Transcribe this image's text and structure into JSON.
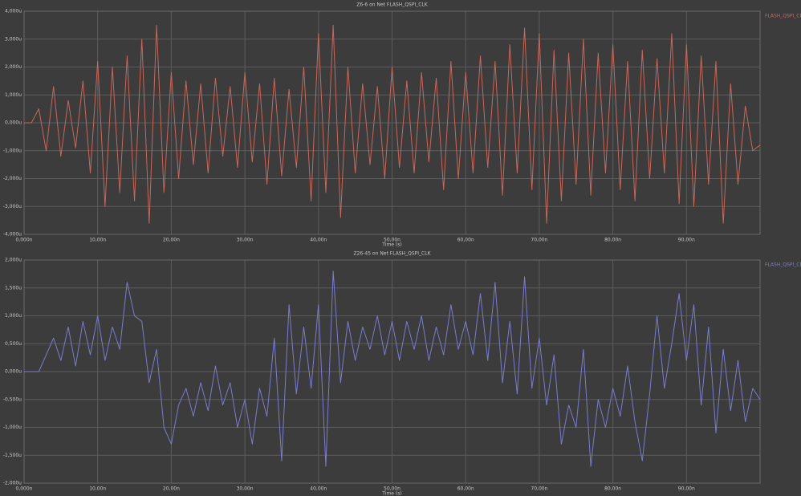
{
  "chart_data": [
    {
      "type": "line",
      "title": "Z6-6 on Net FLASH_QSPI_CLK",
      "x_label": "Time (s)",
      "x": [
        0,
        1,
        2,
        3,
        4,
        5,
        6,
        7,
        8,
        9,
        10,
        11,
        12,
        13,
        14,
        15,
        16,
        17,
        18,
        19,
        20,
        21,
        22,
        23,
        24,
        25,
        26,
        27,
        28,
        29,
        30,
        31,
        32,
        33,
        34,
        35,
        36,
        37,
        38,
        39,
        40,
        41,
        42,
        43,
        44,
        45,
        46,
        47,
        48,
        49,
        50,
        51,
        52,
        53,
        54,
        55,
        56,
        57,
        58,
        59,
        60,
        61,
        62,
        63,
        64,
        65,
        66,
        67,
        68,
        69,
        70,
        71,
        72,
        73,
        74,
        75,
        76,
        77,
        78,
        79,
        80,
        81,
        82,
        83,
        84,
        85,
        86,
        87,
        88,
        89,
        90,
        91,
        92,
        93,
        94,
        95,
        96,
        97,
        98,
        99,
        100
      ],
      "series": [
        {
          "name": "FLASH_QSPI_CLK",
          "color": "#c8675a",
          "values": [
            0,
            0,
            0.5,
            -1.0,
            1.3,
            -1.2,
            0.8,
            -0.9,
            1.5,
            -1.8,
            2.2,
            -3.0,
            2.0,
            -2.5,
            2.4,
            -2.8,
            3.0,
            -3.6,
            3.5,
            -2.5,
            1.8,
            -2.0,
            1.5,
            -1.5,
            1.4,
            -1.8,
            1.6,
            -1.2,
            1.3,
            -1.6,
            1.8,
            -1.4,
            1.4,
            -2.2,
            1.6,
            -1.9,
            1.2,
            -1.6,
            2.0,
            -2.8,
            3.2,
            -2.5,
            3.5,
            -3.4,
            2.0,
            -1.8,
            1.4,
            -1.5,
            1.3,
            -2.0,
            2.0,
            -1.6,
            1.5,
            -1.8,
            1.8,
            -1.4,
            1.6,
            -2.4,
            2.2,
            -2.0,
            1.8,
            -1.8,
            2.4,
            -1.6,
            2.2,
            -2.6,
            2.8,
            -1.8,
            3.4,
            -2.4,
            3.2,
            -3.6,
            2.6,
            -2.8,
            2.5,
            -2.2,
            3.0,
            -2.6,
            2.5,
            -1.8,
            2.8,
            -2.4,
            2.2,
            -2.8,
            2.6,
            -2.0,
            2.3,
            -1.8,
            3.2,
            -2.9,
            2.8,
            -3.0,
            2.4,
            -2.2,
            2.2,
            -3.6,
            1.4,
            -2.2,
            0.6,
            -1.0,
            -0.8
          ]
        }
      ],
      "xlim": [
        0,
        100
      ],
      "xticks": [
        {
          "value": 0,
          "label": "0,000n"
        },
        {
          "value": 10,
          "label": "10,00n"
        },
        {
          "value": 20,
          "label": "20,00n"
        },
        {
          "value": 30,
          "label": "30,00n"
        },
        {
          "value": 40,
          "label": "40,00n"
        },
        {
          "value": 50,
          "label": "50,00n"
        },
        {
          "value": 60,
          "label": "60,00n"
        },
        {
          "value": 70,
          "label": "70,00n"
        },
        {
          "value": 80,
          "label": "80,00n"
        },
        {
          "value": 90,
          "label": "90,00n"
        }
      ],
      "ylim": [
        -4,
        4
      ],
      "yticks": [
        {
          "value": -4,
          "label": "-4,000u"
        },
        {
          "value": -3,
          "label": "-3,000u"
        },
        {
          "value": -2,
          "label": "-2,000u"
        },
        {
          "value": -1,
          "label": "-1,000u"
        },
        {
          "value": 0,
          "label": "0,000u"
        },
        {
          "value": 1,
          "label": "1,000u"
        },
        {
          "value": 2,
          "label": "2,000u"
        },
        {
          "value": 3,
          "label": "3,000u"
        },
        {
          "value": 4,
          "label": "4,000u"
        }
      ],
      "grid": true
    },
    {
      "type": "line",
      "title": "Z26-45 on Net FLASH_QSPI_CLK",
      "x_label": "Time (s)",
      "x": [
        0,
        1,
        2,
        3,
        4,
        5,
        6,
        7,
        8,
        9,
        10,
        11,
        12,
        13,
        14,
        15,
        16,
        17,
        18,
        19,
        20,
        21,
        22,
        23,
        24,
        25,
        26,
        27,
        28,
        29,
        30,
        31,
        32,
        33,
        34,
        35,
        36,
        37,
        38,
        39,
        40,
        41,
        42,
        43,
        44,
        45,
        46,
        47,
        48,
        49,
        50,
        51,
        52,
        53,
        54,
        55,
        56,
        57,
        58,
        59,
        60,
        61,
        62,
        63,
        64,
        65,
        66,
        67,
        68,
        69,
        70,
        71,
        72,
        73,
        74,
        75,
        76,
        77,
        78,
        79,
        80,
        81,
        82,
        83,
        84,
        85,
        86,
        87,
        88,
        89,
        90,
        91,
        92,
        93,
        94,
        95,
        96,
        97,
        98,
        99,
        100
      ],
      "series": [
        {
          "name": "FLASH_QSPI_CLK",
          "color": "#7b7bd0",
          "values": [
            0,
            0,
            0,
            0.3,
            0.6,
            0.2,
            0.8,
            0.1,
            0.9,
            0.3,
            1.0,
            0.2,
            0.8,
            0.4,
            1.6,
            1.0,
            0.9,
            -0.2,
            0.4,
            -1.0,
            -1.3,
            -0.6,
            -0.3,
            -0.8,
            -0.2,
            -0.7,
            0.1,
            -0.6,
            -0.2,
            -1.0,
            -0.5,
            -1.3,
            -0.3,
            -0.8,
            0.6,
            -1.6,
            1.2,
            -0.4,
            0.8,
            -0.3,
            1.2,
            -1.7,
            1.8,
            -0.2,
            0.9,
            0.2,
            0.8,
            0.4,
            1.0,
            0.3,
            0.9,
            0.2,
            0.9,
            0.4,
            1.0,
            0.2,
            0.8,
            0.3,
            1.2,
            0.4,
            0.9,
            0.3,
            1.4,
            0.2,
            1.6,
            -0.2,
            0.9,
            -0.4,
            1.7,
            -0.3,
            0.6,
            -0.6,
            0.3,
            -1.3,
            -0.6,
            -1.0,
            0.4,
            -1.7,
            -0.5,
            -1.0,
            -0.3,
            -0.8,
            0.1,
            -0.9,
            -1.6,
            -0.4,
            1.0,
            -0.3,
            0.5,
            1.4,
            0.2,
            1.2,
            -0.6,
            0.8,
            -1.1,
            0.4,
            -0.7,
            0.2,
            -0.9,
            -0.3,
            -0.5
          ]
        }
      ],
      "xlim": [
        0,
        100
      ],
      "xticks": [
        {
          "value": 0,
          "label": "0,000n"
        },
        {
          "value": 10,
          "label": "10,00n"
        },
        {
          "value": 20,
          "label": "20,00n"
        },
        {
          "value": 30,
          "label": "30,00n"
        },
        {
          "value": 40,
          "label": "40,00n"
        },
        {
          "value": 50,
          "label": "50,00n"
        },
        {
          "value": 60,
          "label": "60,00n"
        },
        {
          "value": 70,
          "label": "70,00n"
        },
        {
          "value": 80,
          "label": "80,00n"
        },
        {
          "value": 90,
          "label": "90,00n"
        }
      ],
      "ylim": [
        -2,
        2
      ],
      "yticks": [
        {
          "value": -2,
          "label": "-2,000u"
        },
        {
          "value": -1.5,
          "label": "-1,500u"
        },
        {
          "value": -1,
          "label": "-1,000u"
        },
        {
          "value": -0.5,
          "label": "-0,500u"
        },
        {
          "value": 0,
          "label": "0,000u"
        },
        {
          "value": 0.5,
          "label": "0,500u"
        },
        {
          "value": 1,
          "label": "1,000u"
        },
        {
          "value": 1.5,
          "label": "1,500u"
        },
        {
          "value": 2,
          "label": "2,000u"
        }
      ],
      "grid": true
    }
  ]
}
